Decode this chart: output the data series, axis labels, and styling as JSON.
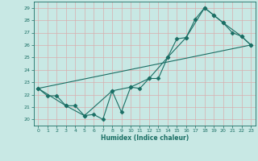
{
  "title": "",
  "xlabel": "Humidex (Indice chaleur)",
  "xlim": [
    -0.5,
    23.5
  ],
  "ylim": [
    19.5,
    29.5
  ],
  "xticks": [
    0,
    1,
    2,
    3,
    4,
    5,
    6,
    7,
    8,
    9,
    10,
    11,
    12,
    13,
    14,
    15,
    16,
    17,
    18,
    19,
    20,
    21,
    22,
    23
  ],
  "yticks": [
    20,
    21,
    22,
    23,
    24,
    25,
    26,
    27,
    28,
    29
  ],
  "bg_color": "#c8e8e4",
  "line_color": "#1a6e64",
  "grid_color": "#b0d8d4",
  "line1_x": [
    0,
    1,
    2,
    3,
    4,
    5,
    6,
    7,
    8,
    9,
    10,
    11,
    12,
    13,
    14,
    15,
    16,
    17,
    18,
    19,
    20,
    21,
    22,
    23
  ],
  "line1_y": [
    22.5,
    21.9,
    21.9,
    21.1,
    21.1,
    20.3,
    20.4,
    20.0,
    22.3,
    20.6,
    22.6,
    22.5,
    23.3,
    23.3,
    25.0,
    26.5,
    26.6,
    28.1,
    29.0,
    28.4,
    27.8,
    27.0,
    26.7,
    26.0
  ],
  "line2_x": [
    0,
    3,
    5,
    8,
    10,
    12,
    14,
    16,
    18,
    19,
    20,
    22,
    23
  ],
  "line2_y": [
    22.5,
    21.1,
    20.3,
    22.3,
    22.6,
    23.3,
    25.0,
    26.6,
    29.0,
    28.4,
    27.8,
    26.7,
    26.0
  ],
  "line3_x": [
    0,
    23
  ],
  "line3_y": [
    22.5,
    26.0
  ]
}
